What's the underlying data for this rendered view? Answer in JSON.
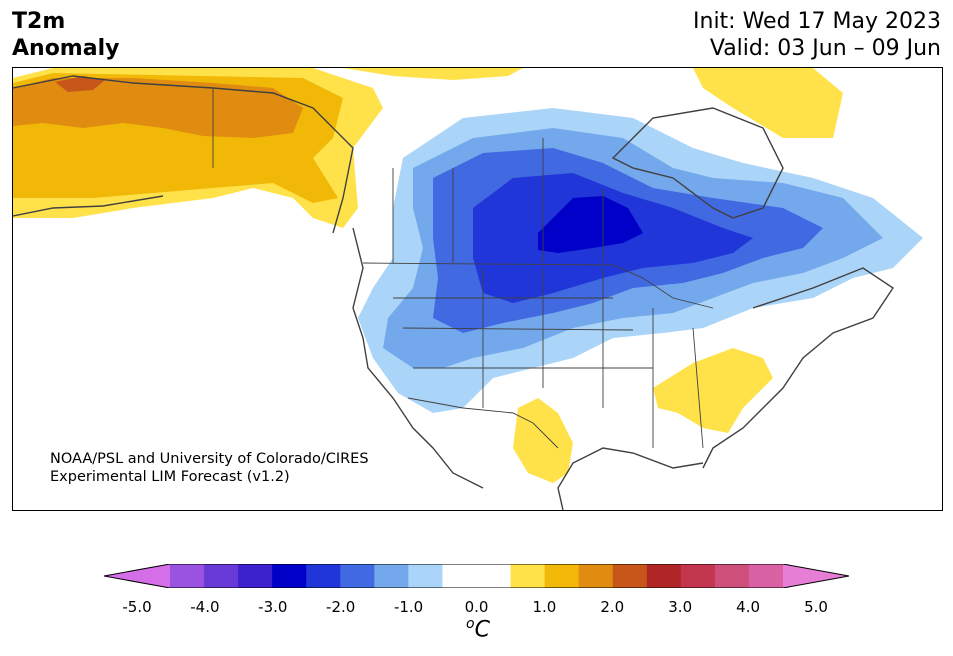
{
  "header": {
    "title_line1": "T2m",
    "title_line2": "Anomaly",
    "init": "Init: Wed 17 May 2023",
    "valid": "Valid: 03 Jun – 09 Jun"
  },
  "credit": {
    "line1": "NOAA/PSL and University of Colorado/CIRES",
    "line2": "Experimental LIM Forecast (v1.2)"
  },
  "colorbar": {
    "colors": [
      "#d56ee8",
      "#9a52e0",
      "#6a3ad6",
      "#3b22cc",
      "#0000c8",
      "#2136d8",
      "#4169e1",
      "#74a8ec",
      "#aad4f8",
      "#ffffff",
      "#ffffff",
      "#ffe24a",
      "#f2b807",
      "#e08c10",
      "#c6561a",
      "#b02626",
      "#c2374e",
      "#cd4f7a",
      "#d862a4",
      "#e77ed6"
    ],
    "ticks": [
      "-5.0",
      "-4.0",
      "-3.0",
      "-2.0",
      "-1.0",
      "0.0",
      "1.0",
      "2.0",
      "3.0",
      "4.0",
      "5.0"
    ],
    "unit_base": "C",
    "unit_sup": "o"
  }
}
